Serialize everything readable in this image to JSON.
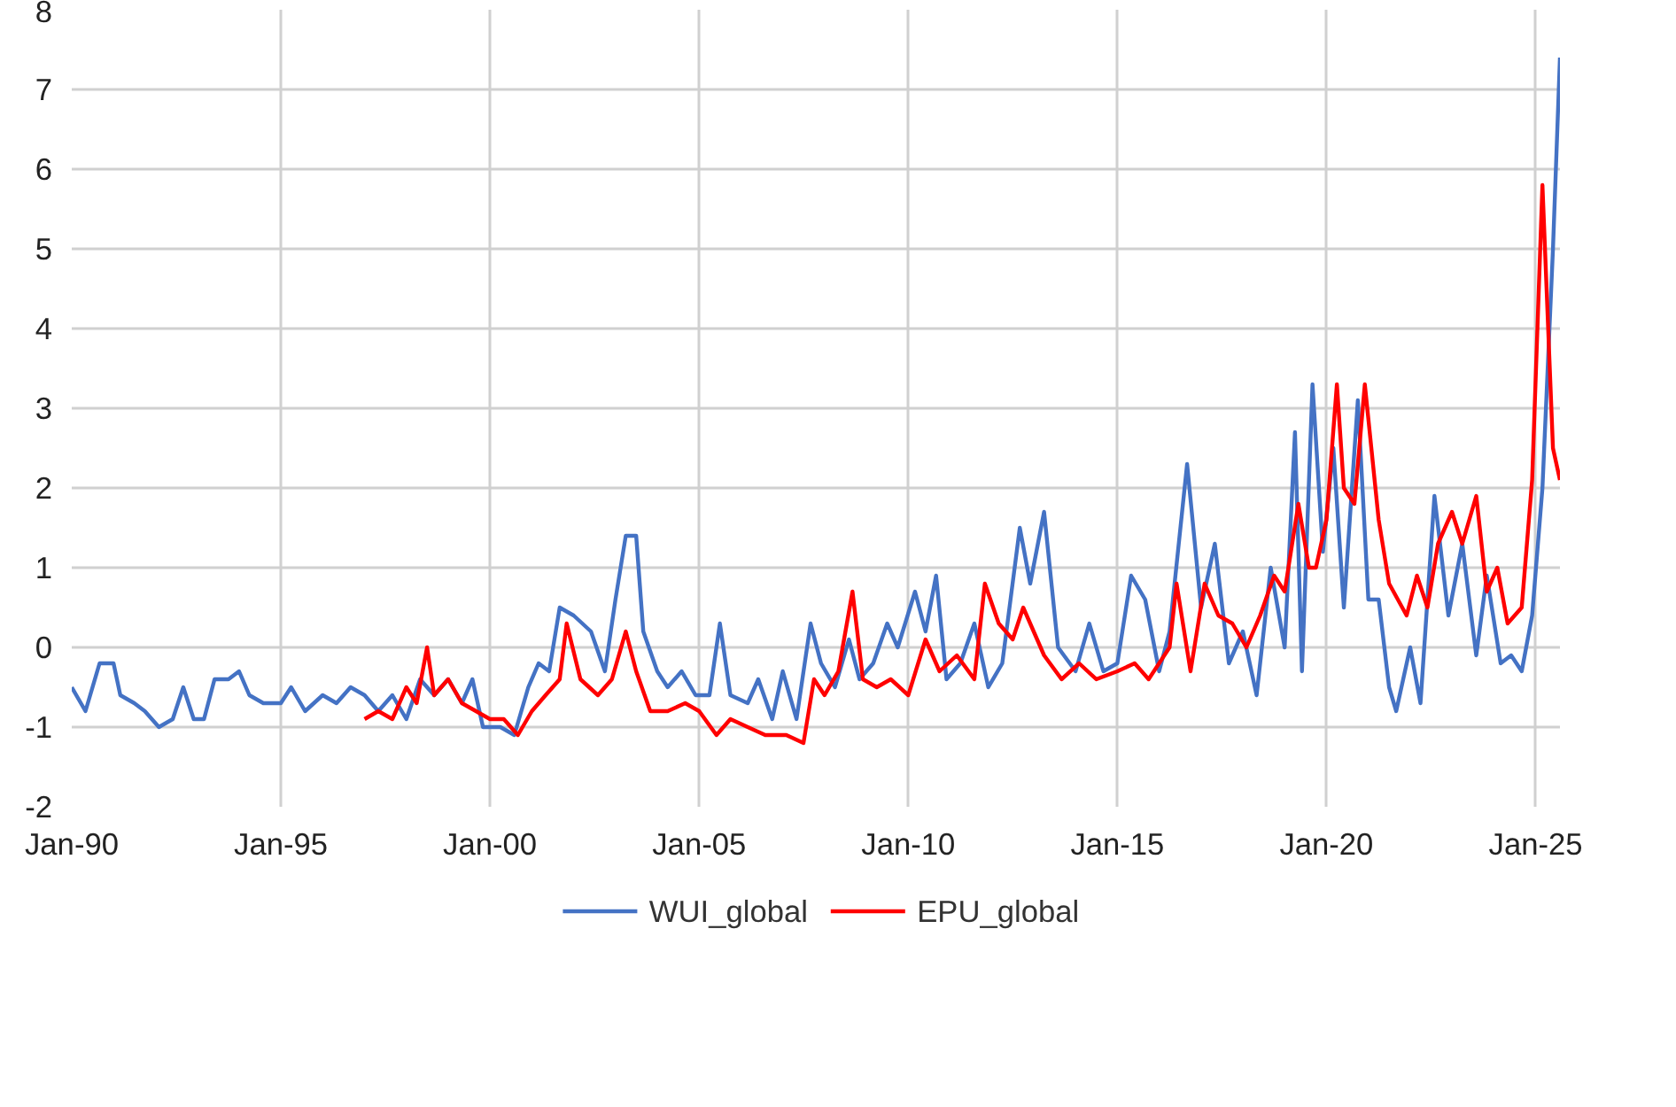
{
  "chart_data": {
    "type": "line",
    "ylim": [
      -2,
      8
    ],
    "yticks": [
      -2,
      -1,
      0,
      1,
      2,
      3,
      4,
      5,
      6,
      7,
      8
    ],
    "xlim": [
      "1990-01",
      "2025-08"
    ],
    "xticks": [
      {
        "value": "1990-01",
        "label": "Jan-90"
      },
      {
        "value": "1995-01",
        "label": "Jan-95"
      },
      {
        "value": "2000-01",
        "label": "Jan-00"
      },
      {
        "value": "2005-01",
        "label": "Jan-05"
      },
      {
        "value": "2010-01",
        "label": "Jan-10"
      },
      {
        "value": "2015-01",
        "label": "Jan-15"
      },
      {
        "value": "2020-01",
        "label": "Jan-20"
      },
      {
        "value": "2025-01",
        "label": "Jan-25"
      }
    ],
    "grid": true,
    "legend": "bottom",
    "line_style": "solid",
    "series": [
      {
        "name": "WUI_global",
        "color": "#4472c4",
        "x": [
          "1990-01",
          "1990-05",
          "1990-09",
          "1991-01",
          "1991-03",
          "1991-07",
          "1991-10",
          "1992-02",
          "1992-06",
          "1992-09",
          "1992-12",
          "1993-03",
          "1993-06",
          "1993-10",
          "1994-01",
          "1994-04",
          "1994-08",
          "1995-01",
          "1995-04",
          "1995-08",
          "1996-01",
          "1996-05",
          "1996-09",
          "1997-01",
          "1997-05",
          "1997-09",
          "1998-01",
          "1998-05",
          "1998-09",
          "1999-01",
          "1999-05",
          "1999-08",
          "1999-11",
          "2000-04",
          "2000-08",
          "2000-12",
          "2001-03",
          "2001-06",
          "2001-09",
          "2002-01",
          "2002-06",
          "2002-10",
          "2003-01",
          "2003-04",
          "2003-07",
          "2003-09",
          "2004-01",
          "2004-04",
          "2004-08",
          "2004-12",
          "2005-04",
          "2005-07",
          "2005-10",
          "2006-03",
          "2006-06",
          "2006-10",
          "2007-01",
          "2007-05",
          "2007-09",
          "2007-12",
          "2008-04",
          "2008-08",
          "2008-11",
          "2009-03",
          "2009-07",
          "2009-10",
          "2010-03",
          "2010-06",
          "2010-09",
          "2010-12",
          "2011-04",
          "2011-08",
          "2011-12",
          "2012-04",
          "2012-09",
          "2012-12",
          "2013-04",
          "2013-08",
          "2014-01",
          "2014-05",
          "2014-09",
          "2015-01",
          "2015-05",
          "2015-09",
          "2016-01",
          "2016-04",
          "2016-09",
          "2017-01",
          "2017-05",
          "2017-09",
          "2018-01",
          "2018-05",
          "2018-09",
          "2019-01",
          "2019-04",
          "2019-06",
          "2019-09",
          "2019-12",
          "2020-03",
          "2020-06",
          "2020-10",
          "2021-01",
          "2021-04",
          "2021-07",
          "2021-09",
          "2022-01",
          "2022-04",
          "2022-08",
          "2022-12",
          "2023-04",
          "2023-08",
          "2023-11",
          "2024-03",
          "2024-06",
          "2024-09",
          "2024-12",
          "2025-03",
          "2025-06",
          "2025-08"
        ],
        "values": [
          -0.5,
          -0.8,
          -0.2,
          -0.2,
          -0.6,
          -0.7,
          -0.8,
          -1.0,
          -0.9,
          -0.5,
          -0.9,
          -0.9,
          -0.4,
          -0.4,
          -0.3,
          -0.6,
          -0.7,
          -0.7,
          -0.5,
          -0.8,
          -0.6,
          -0.7,
          -0.5,
          -0.6,
          -0.8,
          -0.6,
          -0.9,
          -0.4,
          -0.6,
          -0.4,
          -0.7,
          -0.4,
          -1.0,
          -1.0,
          -1.1,
          -0.5,
          -0.2,
          -0.3,
          0.5,
          0.4,
          0.2,
          -0.3,
          0.6,
          1.4,
          1.4,
          0.2,
          -0.3,
          -0.5,
          -0.3,
          -0.6,
          -0.6,
          0.3,
          -0.6,
          -0.7,
          -0.4,
          -0.9,
          -0.3,
          -0.9,
          0.3,
          -0.2,
          -0.5,
          0.1,
          -0.4,
          -0.2,
          0.3,
          0.0,
          0.7,
          0.2,
          0.9,
          -0.4,
          -0.2,
          0.3,
          -0.5,
          -0.2,
          1.5,
          0.8,
          1.7,
          0.0,
          -0.3,
          0.3,
          -0.3,
          -0.2,
          0.9,
          0.6,
          -0.3,
          0.2,
          2.3,
          0.5,
          1.3,
          -0.2,
          0.2,
          -0.6,
          1.0,
          0.0,
          2.7,
          -0.3,
          3.3,
          1.2,
          2.5,
          0.5,
          3.1,
          0.6,
          0.6,
          -0.5,
          -0.8,
          0.0,
          -0.7,
          1.9,
          0.4,
          1.3,
          -0.1,
          0.9,
          -0.2,
          -0.1,
          -0.3,
          0.4,
          2.0,
          5.0,
          7.4
        ]
      },
      {
        "name": "EPU_global",
        "color": "#ff0000",
        "x": [
          "1997-01",
          "1997-05",
          "1997-09",
          "1998-01",
          "1998-04",
          "1998-07",
          "1998-09",
          "1999-01",
          "1999-05",
          "1999-09",
          "2000-01",
          "2000-05",
          "2000-09",
          "2001-01",
          "2001-05",
          "2001-09",
          "2001-11",
          "2002-03",
          "2002-08",
          "2002-12",
          "2003-04",
          "2003-07",
          "2003-11",
          "2004-04",
          "2004-09",
          "2005-01",
          "2005-06",
          "2005-10",
          "2006-03",
          "2006-08",
          "2007-02",
          "2007-07",
          "2007-10",
          "2008-01",
          "2008-05",
          "2008-09",
          "2008-12",
          "2009-04",
          "2009-08",
          "2010-01",
          "2010-06",
          "2010-10",
          "2011-03",
          "2011-08",
          "2011-11",
          "2012-03",
          "2012-07",
          "2012-10",
          "2013-04",
          "2013-09",
          "2014-02",
          "2014-07",
          "2015-01",
          "2015-06",
          "2015-10",
          "2016-04",
          "2016-06",
          "2016-10",
          "2017-02",
          "2017-06",
          "2017-10",
          "2018-02",
          "2018-06",
          "2018-10",
          "2019-01",
          "2019-05",
          "2019-08",
          "2019-10",
          "2020-01",
          "2020-04",
          "2020-06",
          "2020-09",
          "2020-12",
          "2021-04",
          "2021-07",
          "2021-12",
          "2022-03",
          "2022-06",
          "2022-09",
          "2023-01",
          "2023-04",
          "2023-08",
          "2023-11",
          "2024-02",
          "2024-05",
          "2024-09",
          "2024-12",
          "2025-03",
          "2025-06",
          "2025-08"
        ],
        "values": [
          -0.9,
          -0.8,
          -0.9,
          -0.5,
          -0.7,
          0.0,
          -0.6,
          -0.4,
          -0.7,
          -0.8,
          -0.9,
          -0.9,
          -1.1,
          -0.8,
          -0.6,
          -0.4,
          0.3,
          -0.4,
          -0.6,
          -0.4,
          0.2,
          -0.3,
          -0.8,
          -0.8,
          -0.7,
          -0.8,
          -1.1,
          -0.9,
          -1.0,
          -1.1,
          -1.1,
          -1.2,
          -0.4,
          -0.6,
          -0.3,
          0.7,
          -0.4,
          -0.5,
          -0.4,
          -0.6,
          0.1,
          -0.3,
          -0.1,
          -0.4,
          0.8,
          0.3,
          0.1,
          0.5,
          -0.1,
          -0.4,
          -0.2,
          -0.4,
          -0.3,
          -0.2,
          -0.4,
          0.0,
          0.8,
          -0.3,
          0.8,
          0.4,
          0.3,
          0.0,
          0.4,
          0.9,
          0.7,
          1.8,
          1.0,
          1.0,
          1.6,
          3.3,
          2.0,
          1.8,
          3.3,
          1.6,
          0.8,
          0.4,
          0.9,
          0.5,
          1.3,
          1.7,
          1.3,
          1.9,
          0.7,
          1.0,
          0.3,
          0.5,
          2.1,
          5.8,
          2.5,
          2.1
        ]
      }
    ]
  }
}
